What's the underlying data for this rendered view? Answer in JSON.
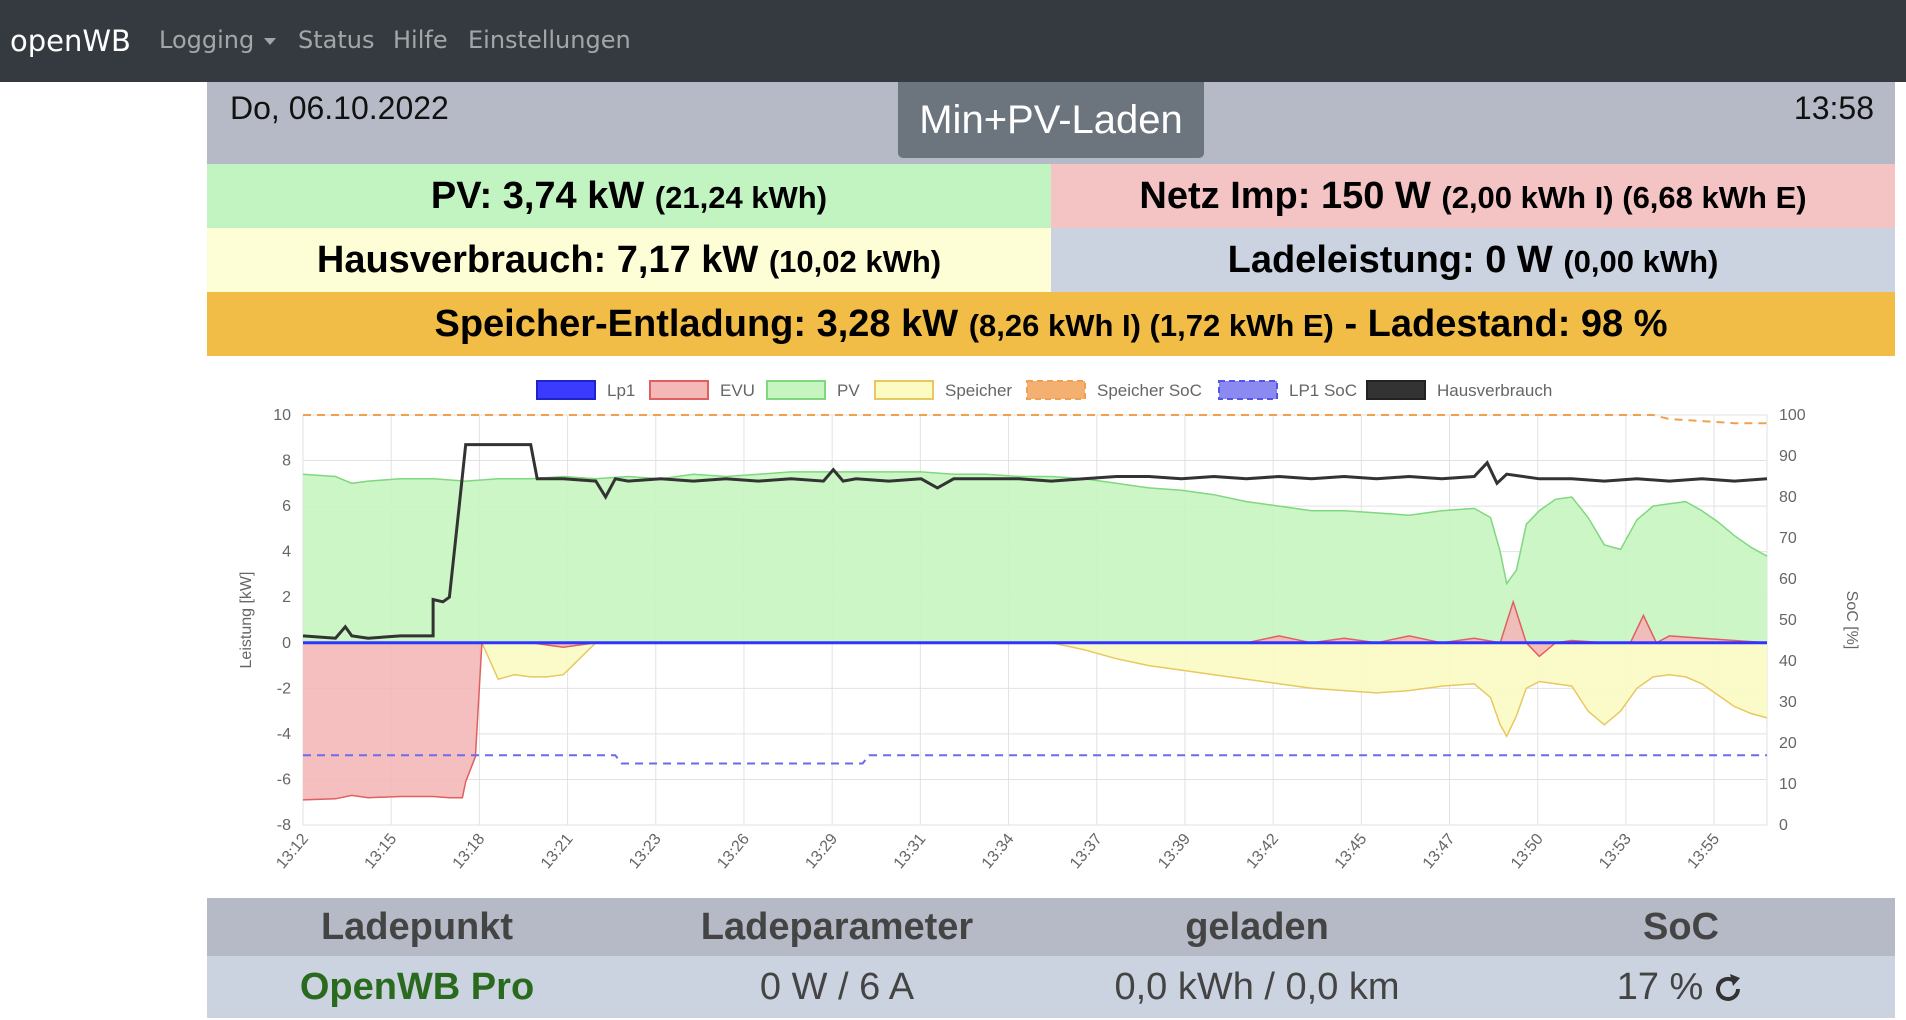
{
  "nav": {
    "brand": "openWB",
    "items": [
      {
        "label": "Logging",
        "dropdown": true
      },
      {
        "label": "Status"
      },
      {
        "label": "Hilfe"
      },
      {
        "label": "Einstellungen"
      }
    ]
  },
  "header": {
    "date": "Do, 06.10.2022",
    "time": "13:58",
    "mode": "Min+PV-Laden"
  },
  "summary": {
    "pv_main": "PV: 3,74 kW",
    "pv_sub": "(21,24 kWh)",
    "netz_main": "Netz Imp: 150 W",
    "netz_sub": "(2,00 kWh I) (6,68 kWh E)",
    "haus_main": "Hausverbrauch: 7,17 kW",
    "haus_sub": "(10,02 kWh)",
    "lade_main": "Ladeleistung: 0 W",
    "lade_sub": "(0,00 kWh)",
    "speicher_main": "Speicher-Entladung: 3,28 kW",
    "speicher_sub": "(8,26 kWh I) (1,72 kWh E)",
    "speicher_tail": "- Ladestand: 98 %"
  },
  "colors": {
    "navbar": "#343a40",
    "date_row": "#b6bac6",
    "mode_badge": "#6c757d",
    "pv_bg": "#c2f4c2",
    "netz_bg": "#f4c3c3",
    "haus_bg": "#fefed6",
    "lade_bg": "#ccd3e0",
    "speicher_bg": "#f1bd46",
    "openwb_green": "#2a6a1e"
  },
  "chart_data": {
    "type": "line",
    "ylabel": "Leistung [kW]",
    "y2label": "SoC [%]",
    "ylim": [
      -8,
      10
    ],
    "y2lim": [
      0,
      100
    ],
    "yticks": [
      10,
      8,
      6,
      4,
      2,
      0,
      -2,
      -4,
      -6,
      -8
    ],
    "y2ticks": [
      100,
      90,
      80,
      70,
      60,
      50,
      40,
      30,
      20,
      10,
      0
    ],
    "xlim": [
      0,
      45
    ],
    "x_tick_labels": [
      "13:12",
      "13:15",
      "13:18",
      "13:21",
      "13:23",
      "13:26",
      "13:29",
      "13:31",
      "13:34",
      "13:37",
      "13:39",
      "13:42",
      "13:45",
      "13:47",
      "13:50",
      "13:53",
      "13:55"
    ],
    "grid": true,
    "legend_position": "top",
    "series": [
      {
        "name": "Lp1",
        "color": "#3333ff",
        "axis": "left",
        "points": [
          [
            0,
            0
          ],
          [
            45,
            0
          ]
        ]
      },
      {
        "name": "EVU",
        "color": "#e06060",
        "fill": "#f4b8b8",
        "axis": "left",
        "points": [
          [
            0,
            -6.9
          ],
          [
            1,
            -6.85
          ],
          [
            1.5,
            -6.7
          ],
          [
            2,
            -6.8
          ],
          [
            3,
            -6.75
          ],
          [
            4,
            -6.75
          ],
          [
            4.5,
            -6.8
          ],
          [
            4.9,
            -6.8
          ],
          [
            5,
            -6.1
          ],
          [
            5.3,
            -5
          ],
          [
            5.5,
            0
          ],
          [
            6,
            0
          ],
          [
            7,
            0
          ],
          [
            8,
            -0.2
          ],
          [
            9,
            0
          ],
          [
            10,
            0
          ],
          [
            11,
            0
          ],
          [
            12,
            0
          ],
          [
            13,
            0
          ],
          [
            14,
            0
          ],
          [
            15,
            0
          ],
          [
            16,
            0
          ],
          [
            17,
            0
          ],
          [
            18,
            0
          ],
          [
            19,
            0
          ],
          [
            20,
            0
          ],
          [
            21,
            0
          ],
          [
            22,
            0
          ],
          [
            23,
            0
          ],
          [
            24,
            0
          ],
          [
            25,
            0
          ],
          [
            26,
            0
          ],
          [
            27,
            0
          ],
          [
            28,
            0
          ],
          [
            29,
            0
          ],
          [
            30,
            0.3
          ],
          [
            31,
            0
          ],
          [
            32,
            0.2
          ],
          [
            33,
            0
          ],
          [
            34,
            0.3
          ],
          [
            35,
            0
          ],
          [
            36,
            0.2
          ],
          [
            36.8,
            0
          ],
          [
            37.2,
            1.8
          ],
          [
            37.6,
            0
          ],
          [
            38,
            -0.6
          ],
          [
            38.5,
            0
          ],
          [
            39,
            0.1
          ],
          [
            40,
            0
          ],
          [
            40.8,
            0
          ],
          [
            41.2,
            1.2
          ],
          [
            41.6,
            0
          ],
          [
            42,
            0.3
          ],
          [
            43,
            0.2
          ],
          [
            44,
            0.1
          ],
          [
            45,
            0
          ]
        ]
      },
      {
        "name": "PV",
        "color": "#7fd87f",
        "fill": "#c6f5c0",
        "axis": "left",
        "points": [
          [
            0,
            7.4
          ],
          [
            1,
            7.3
          ],
          [
            1.5,
            7
          ],
          [
            2,
            7.1
          ],
          [
            3,
            7.2
          ],
          [
            4,
            7.2
          ],
          [
            5,
            7.1
          ],
          [
            6,
            7.2
          ],
          [
            7,
            7.2
          ],
          [
            8,
            7.3
          ],
          [
            9,
            7.2
          ],
          [
            10,
            7.3
          ],
          [
            11,
            7.2
          ],
          [
            12,
            7.4
          ],
          [
            13,
            7.3
          ],
          [
            14,
            7.4
          ],
          [
            15,
            7.5
          ],
          [
            16,
            7.5
          ],
          [
            17,
            7.5
          ],
          [
            18,
            7.5
          ],
          [
            19,
            7.5
          ],
          [
            20,
            7.4
          ],
          [
            21,
            7.4
          ],
          [
            22,
            7.3
          ],
          [
            23,
            7.3
          ],
          [
            24,
            7.2
          ],
          [
            25,
            7
          ],
          [
            26,
            6.8
          ],
          [
            27,
            6.7
          ],
          [
            28,
            6.5
          ],
          [
            29,
            6.2
          ],
          [
            30,
            6
          ],
          [
            31,
            5.8
          ],
          [
            32,
            5.8
          ],
          [
            33,
            5.7
          ],
          [
            34,
            5.6
          ],
          [
            35,
            5.8
          ],
          [
            36,
            5.9
          ],
          [
            36.5,
            5.5
          ],
          [
            36.8,
            4
          ],
          [
            37,
            2.6
          ],
          [
            37.3,
            3.2
          ],
          [
            37.6,
            5.2
          ],
          [
            38,
            5.8
          ],
          [
            38.5,
            6.3
          ],
          [
            39,
            6.4
          ],
          [
            39.5,
            5.5
          ],
          [
            40,
            4.3
          ],
          [
            40.5,
            4.1
          ],
          [
            41,
            5.4
          ],
          [
            41.5,
            6
          ],
          [
            42,
            6.1
          ],
          [
            42.5,
            6.2
          ],
          [
            43,
            5.8
          ],
          [
            43.5,
            5.3
          ],
          [
            44,
            4.7
          ],
          [
            44.5,
            4.2
          ],
          [
            45,
            3.8
          ]
        ]
      },
      {
        "name": "Speicher",
        "color": "#e8c860",
        "fill": "#fbfbc4",
        "axis": "left",
        "points": [
          [
            0,
            0
          ],
          [
            5.5,
            0
          ],
          [
            6,
            -1.6
          ],
          [
            6.5,
            -1.4
          ],
          [
            7,
            -1.5
          ],
          [
            7.5,
            -1.5
          ],
          [
            8,
            -1.4
          ],
          [
            9,
            0
          ],
          [
            10,
            0
          ],
          [
            11,
            0
          ],
          [
            12,
            0
          ],
          [
            13,
            0
          ],
          [
            14,
            0
          ],
          [
            15,
            0
          ],
          [
            16,
            0
          ],
          [
            17,
            0
          ],
          [
            18,
            0
          ],
          [
            19,
            0
          ],
          [
            20,
            0
          ],
          [
            21,
            0
          ],
          [
            22,
            0
          ],
          [
            23,
            0
          ],
          [
            24,
            -0.3
          ],
          [
            25,
            -0.7
          ],
          [
            26,
            -1
          ],
          [
            27,
            -1.2
          ],
          [
            28,
            -1.4
          ],
          [
            29,
            -1.6
          ],
          [
            30,
            -1.8
          ],
          [
            31,
            -2
          ],
          [
            32,
            -2.1
          ],
          [
            33,
            -2.2
          ],
          [
            34,
            -2.1
          ],
          [
            35,
            -1.9
          ],
          [
            36,
            -1.8
          ],
          [
            36.5,
            -2.4
          ],
          [
            36.8,
            -3.6
          ],
          [
            37,
            -4.1
          ],
          [
            37.3,
            -3.2
          ],
          [
            37.6,
            -2
          ],
          [
            38,
            -1.7
          ],
          [
            38.5,
            -1.8
          ],
          [
            39,
            -1.9
          ],
          [
            39.5,
            -3
          ],
          [
            40,
            -3.6
          ],
          [
            40.5,
            -3
          ],
          [
            41,
            -2
          ],
          [
            41.5,
            -1.5
          ],
          [
            42,
            -1.4
          ],
          [
            42.5,
            -1.5
          ],
          [
            43,
            -1.8
          ],
          [
            43.5,
            -2.3
          ],
          [
            44,
            -2.8
          ],
          [
            44.5,
            -3.1
          ],
          [
            45,
            -3.3
          ]
        ]
      },
      {
        "name": "Speicher SoC",
        "color": "#f0a050",
        "dashed": true,
        "axis": "right",
        "points": [
          [
            0,
            100
          ],
          [
            41.5,
            100
          ],
          [
            42,
            99
          ],
          [
            43,
            98.5
          ],
          [
            44,
            98
          ],
          [
            45,
            98
          ]
        ]
      },
      {
        "name": "LP1 SoC",
        "color": "#6b6bea",
        "dashed": true,
        "axis": "right",
        "points": [
          [
            0,
            17
          ],
          [
            9.6,
            17
          ],
          [
            9.8,
            15
          ],
          [
            17.2,
            15
          ],
          [
            17.4,
            17
          ],
          [
            45,
            17
          ]
        ]
      },
      {
        "name": "Hausverbrauch",
        "color": "#333333",
        "axis": "left",
        "points": [
          [
            0,
            0.3
          ],
          [
            1,
            0.2
          ],
          [
            1.3,
            0.7
          ],
          [
            1.5,
            0.3
          ],
          [
            2,
            0.2
          ],
          [
            3,
            0.3
          ],
          [
            4,
            0.3
          ],
          [
            4,
            1.9
          ],
          [
            4.3,
            1.8
          ],
          [
            4.5,
            2
          ],
          [
            4.8,
            6
          ],
          [
            5,
            8.7
          ],
          [
            6,
            8.7
          ],
          [
            7,
            8.7
          ],
          [
            7.2,
            7.2
          ],
          [
            8,
            7.2
          ],
          [
            9,
            7.1
          ],
          [
            9.3,
            6.4
          ],
          [
            9.6,
            7.2
          ],
          [
            10,
            7.1
          ],
          [
            11,
            7.2
          ],
          [
            12,
            7.1
          ],
          [
            13,
            7.2
          ],
          [
            14,
            7.1
          ],
          [
            15,
            7.2
          ],
          [
            16,
            7.1
          ],
          [
            16.3,
            7.6
          ],
          [
            16.6,
            7.1
          ],
          [
            17,
            7.2
          ],
          [
            18,
            7.1
          ],
          [
            19,
            7.2
          ],
          [
            19.5,
            6.8
          ],
          [
            20,
            7.2
          ],
          [
            21,
            7.2
          ],
          [
            22,
            7.2
          ],
          [
            23,
            7.1
          ],
          [
            24,
            7.2
          ],
          [
            25,
            7.3
          ],
          [
            26,
            7.3
          ],
          [
            27,
            7.2
          ],
          [
            28,
            7.3
          ],
          [
            29,
            7.2
          ],
          [
            30,
            7.3
          ],
          [
            31,
            7.2
          ],
          [
            32,
            7.3
          ],
          [
            33,
            7.2
          ],
          [
            34,
            7.3
          ],
          [
            35,
            7.2
          ],
          [
            36,
            7.3
          ],
          [
            36.4,
            7.9
          ],
          [
            36.7,
            7
          ],
          [
            37,
            7.4
          ],
          [
            38,
            7.2
          ],
          [
            39,
            7.2
          ],
          [
            40,
            7.1
          ],
          [
            41,
            7.2
          ],
          [
            42,
            7.1
          ],
          [
            43,
            7.2
          ],
          [
            44,
            7.1
          ],
          [
            45,
            7.2
          ]
        ]
      }
    ]
  },
  "table": {
    "headers": [
      "Ladepunkt",
      "Ladeparameter",
      "geladen",
      "SoC"
    ],
    "row": {
      "ladepunkt": "OpenWB Pro",
      "ladeparameter": "0 W / 6 A",
      "geladen": "0,0 kWh / 0,0 km",
      "soc": "17 %"
    }
  }
}
